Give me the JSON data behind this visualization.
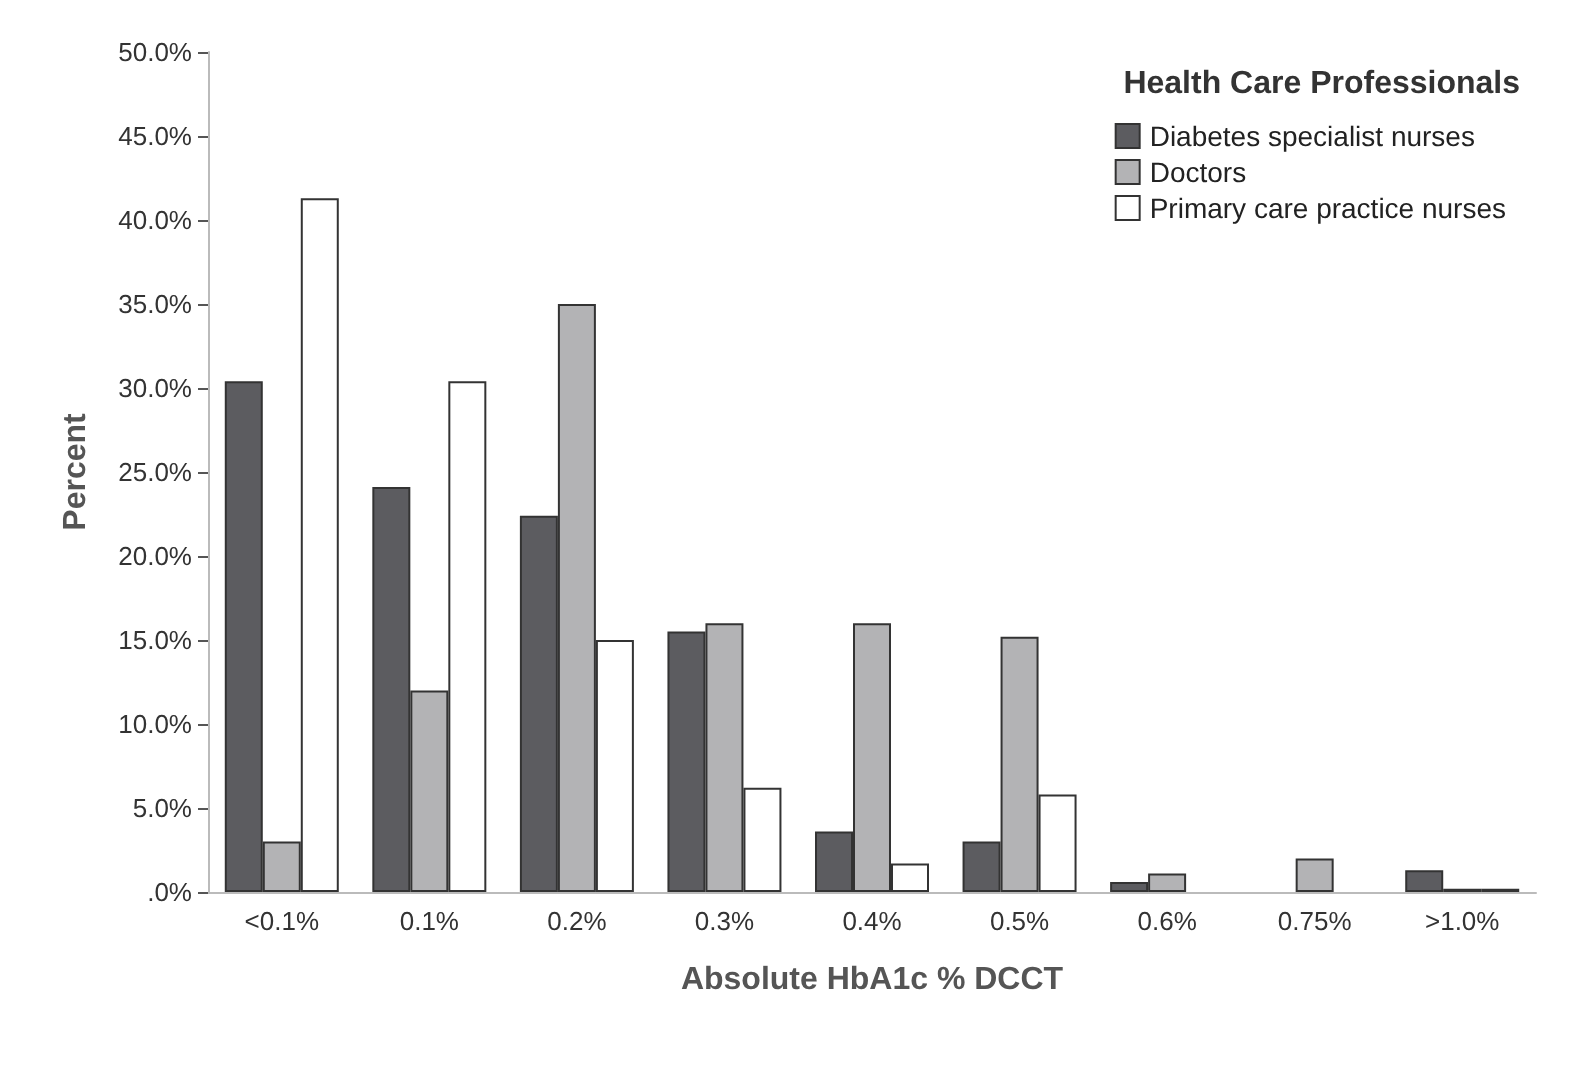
{
  "chart_data": {
    "type": "bar",
    "xlabel": "Absolute HbA1c % DCCT",
    "ylabel": "Percent",
    "legend_title": "Health Care Professionals",
    "categories": [
      "<0.1%",
      "0.1%",
      "0.2%",
      "0.3%",
      "0.4%",
      "0.5%",
      "0.6%",
      "0.75%",
      ">1.0%"
    ],
    "series": [
      {
        "name": "Diabetes specialist nurses",
        "color": "#5c5c60",
        "values": [
          30.4,
          24.1,
          22.4,
          15.5,
          3.6,
          3.0,
          0.6,
          0,
          1.3
        ]
      },
      {
        "name": "Doctors",
        "color": "#b3b3b5",
        "values": [
          3.0,
          12.0,
          35.0,
          16.0,
          16.0,
          15.2,
          1.1,
          2.0,
          0.2
        ]
      },
      {
        "name": "Primary care practice nurses",
        "color": "#ffffff",
        "values": [
          41.3,
          30.4,
          15.0,
          6.2,
          1.7,
          5.8,
          0,
          0,
          0.2
        ]
      }
    ],
    "ylim": [
      0,
      50
    ],
    "yticks": [
      {
        "value": 0,
        "label": ".0%"
      },
      {
        "value": 5,
        "label": "5.0%"
      },
      {
        "value": 10,
        "label": "10.0%"
      },
      {
        "value": 15,
        "label": "15.0%"
      },
      {
        "value": 20,
        "label": "20.0%"
      },
      {
        "value": 25,
        "label": "25.0%"
      },
      {
        "value": 30,
        "label": "30.0%"
      },
      {
        "value": 35,
        "label": "35.0%"
      },
      {
        "value": 40,
        "label": "40.0%"
      },
      {
        "value": 45,
        "label": "45.0%"
      },
      {
        "value": 50,
        "label": "50.0%"
      }
    ],
    "grid": false,
    "legend": "top right"
  }
}
